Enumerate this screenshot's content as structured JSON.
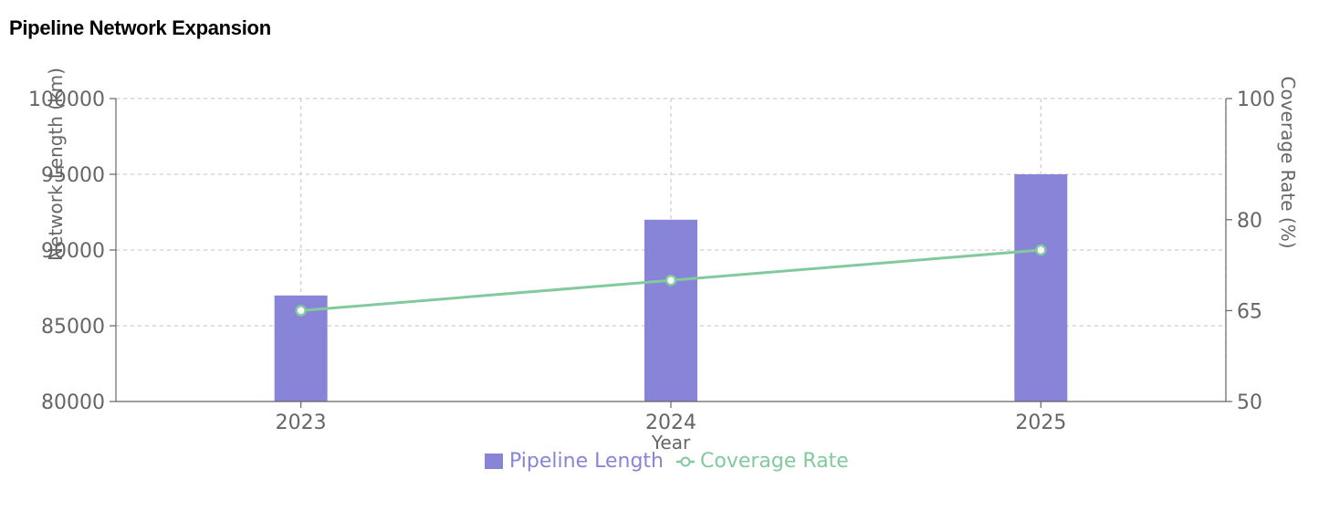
{
  "chart_data": {
    "type": "bar",
    "title": "Pipeline Network Expansion",
    "xlabel": "Year",
    "ylabel_left": "Network Length (km)",
    "ylabel_right": "Coverage Rate (%)",
    "categories": [
      "2023",
      "2024",
      "2025"
    ],
    "ylim_left": [
      80000,
      100000
    ],
    "yticks_left": [
      80000,
      85000,
      90000,
      95000,
      100000
    ],
    "ylim_right": [
      50,
      100
    ],
    "yticks_right": [
      50,
      65,
      80,
      100
    ],
    "grid": true,
    "legend_position": "bottom",
    "series": [
      {
        "name": "Pipeline Length",
        "type": "bar",
        "axis": "left",
        "color": "#8884d8",
        "values": [
          87000,
          92000,
          95000
        ]
      },
      {
        "name": "Coverage Rate",
        "type": "line",
        "axis": "right",
        "color": "#82ca9d",
        "values": [
          65,
          70,
          75
        ]
      }
    ]
  }
}
